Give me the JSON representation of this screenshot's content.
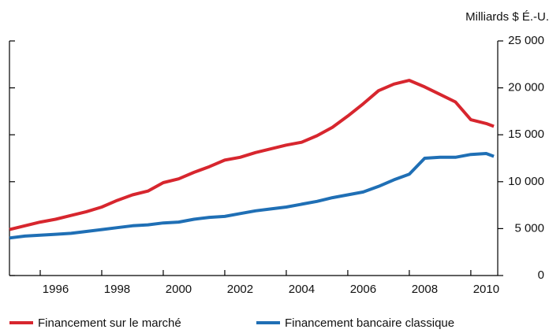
{
  "chart_data": {
    "type": "line",
    "y_axis_label": "Milliards $ É.-U.",
    "x": [
      1995,
      1995.5,
      1996,
      1996.5,
      1997,
      1997.5,
      1998,
      1998.5,
      1999,
      1999.5,
      2000,
      2000.5,
      2001,
      2001.5,
      2002,
      2002.5,
      2003,
      2003.5,
      2004,
      2004.5,
      2005,
      2005.5,
      2006,
      2006.5,
      2007,
      2007.5,
      2008,
      2008.5,
      2009,
      2009.5,
      2010,
      2010.5,
      2010.75
    ],
    "series": [
      {
        "name": "Financement sur le marché",
        "color": "#d7262e",
        "values": [
          4900,
          5300,
          5700,
          6000,
          6400,
          6800,
          7300,
          8000,
          8600,
          9000,
          9900,
          10300,
          11000,
          11600,
          12300,
          12600,
          13100,
          13500,
          13900,
          14200,
          14900,
          15800,
          17000,
          18300,
          19700,
          20400,
          20800,
          20100,
          19300,
          18500,
          16600,
          16200,
          15900
        ]
      },
      {
        "name": "Financement bancaire classique",
        "color": "#1f6fb5",
        "values": [
          4000,
          4200,
          4300,
          4400,
          4500,
          4700,
          4900,
          5100,
          5300,
          5400,
          5600,
          5700,
          6000,
          6200,
          6300,
          6600,
          6900,
          7100,
          7300,
          7600,
          7900,
          8300,
          8600,
          8900,
          9500,
          10200,
          10800,
          12500,
          12600,
          12600,
          12900,
          13000,
          12700
        ]
      }
    ],
    "xlim": [
      1995,
      2010.875
    ],
    "xticks": [
      1996,
      1998,
      2000,
      2002,
      2004,
      2006,
      2008,
      2010
    ],
    "ylim": [
      0,
      25000
    ],
    "yticks": [
      0,
      {
        "value": 5000,
        "label": "5 000"
      },
      {
        "value": 10000,
        "label": "10 000"
      },
      {
        "value": 15000,
        "label": "15 000"
      },
      {
        "value": 20000,
        "label": "20 000"
      },
      {
        "value": 25000,
        "label": "25 000"
      }
    ],
    "legend": "bottom"
  }
}
